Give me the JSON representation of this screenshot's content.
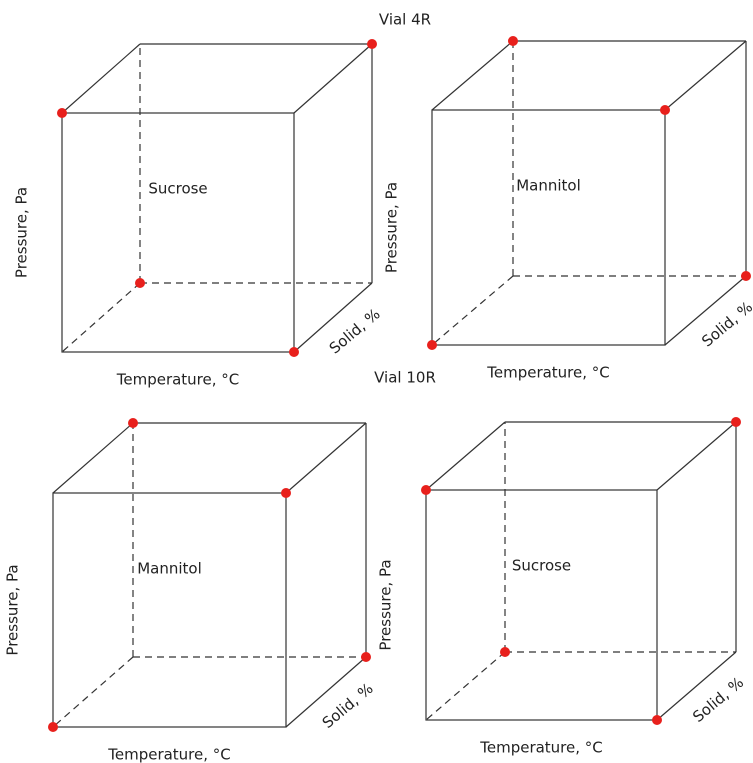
{
  "sections": [
    {
      "title": "Vial 4R",
      "cubes": [
        {
          "label": "Sucrose",
          "y_axis": "Pressure, Pa",
          "x_axis": "Temperature, °C",
          "z_axis": "Solid, %"
        },
        {
          "label": "Mannitol",
          "y_axis": "Pressure, Pa",
          "x_axis": "Temperature, °C",
          "z_axis": "Solid, %"
        }
      ]
    },
    {
      "title": "Vial 10R",
      "cubes": [
        {
          "label": "Mannitol",
          "y_axis": "Pressure, Pa",
          "x_axis": "Temperature, °C",
          "z_axis": "Solid, %"
        },
        {
          "label": "Sucrose",
          "y_axis": "Pressure, Pa",
          "x_axis": "Temperature, °C",
          "z_axis": "Solid, %"
        }
      ]
    }
  ]
}
